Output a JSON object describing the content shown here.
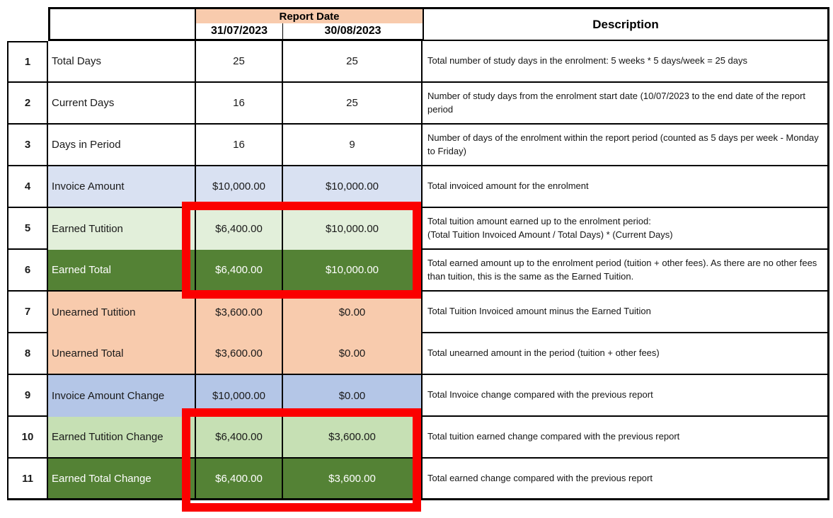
{
  "table": {
    "header": {
      "report_date_label": "Report Date",
      "date_col_1": "31/07/2023",
      "date_col_2": "30/08/2023",
      "description_label": "Description"
    },
    "rows": [
      {
        "num": "1",
        "label": "Total Days",
        "v1": "25",
        "v2": "25",
        "desc": "Total number of study days in the enrolment: 5 weeks * 5 days/week = 25 days"
      },
      {
        "num": "2",
        "label": "Current Days",
        "v1": "16",
        "v2": "25",
        "desc": "Number of study days from the enrolment start date (10/07/2023 to the end date of the report period"
      },
      {
        "num": "3",
        "label": "Days in Period",
        "v1": "16",
        "v2": "9",
        "desc": "Number of days of the enrolment within the report period (counted as 5 days per week - Monday to Friday)"
      },
      {
        "num": "4",
        "label": "Invoice Amount",
        "v1": "$10,000.00",
        "v2": "$10,000.00",
        "desc": "Total invoiced amount for the enrolment"
      },
      {
        "num": "5",
        "label": "Earned Tutition",
        "v1": "$6,400.00",
        "v2": "$10,000.00",
        "desc": "Total tuition amount earned up to the enrolment period:\n(Total Tuition Invoiced Amount / Total Days) * (Current Days)"
      },
      {
        "num": "6",
        "label": "Earned Total",
        "v1": "$6,400.00",
        "v2": "$10,000.00",
        "desc": "Total earned amount up to the enrolment period (tuition + other fees). As there are no other fees than tuition, this is the same as the Earned Tuition."
      },
      {
        "num": "7",
        "label": "Unearned Tutition",
        "v1": "$3,600.00",
        "v2": "$0.00",
        "desc": "Total Tuition Invoiced amount minus the Earned Tuition"
      },
      {
        "num": "8",
        "label": "Unearned Total",
        "v1": "$3,600.00",
        "v2": "$0.00",
        "desc": "Total unearned amount in the period (tuition + other fees)"
      },
      {
        "num": "9",
        "label": "Invoice Amount Change",
        "v1": "$10,000.00",
        "v2": "$0.00",
        "desc": "Total Invoice change compared with the previous report"
      },
      {
        "num": "10",
        "label": "Earned Tutition Change",
        "v1": "$6,400.00",
        "v2": "$3,600.00",
        "desc": "Total tuition earned change compared with the previous report"
      },
      {
        "num": "11",
        "label": "Earned Total Change",
        "v1": "$6,400.00",
        "v2": "$3,600.00",
        "desc": "Total earned change compared with the previous report"
      }
    ],
    "colors": {
      "header_fill": "#F8CBAD",
      "row_lavender": "#D9E1F2",
      "row_blue": "#B4C6E7",
      "row_green_light": "#E2EFDA",
      "row_green_mid": "#C6E0B4",
      "row_green_dark": "#548235",
      "row_peach": "#F8CBAD",
      "border_color": "#000000",
      "highlight_red": "#FB0000"
    }
  }
}
